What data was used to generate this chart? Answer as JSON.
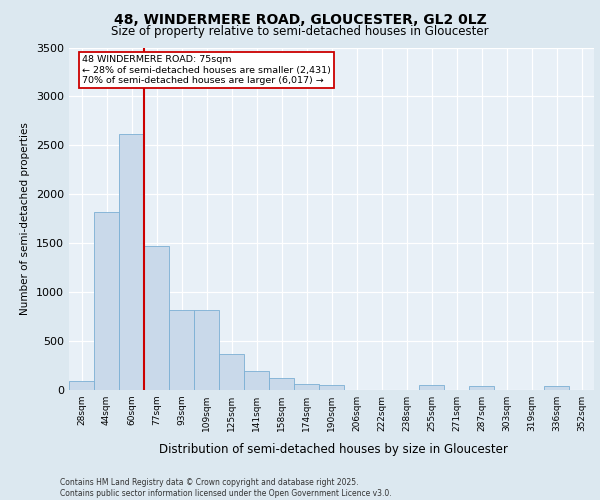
{
  "title_line1": "48, WINDERMERE ROAD, GLOUCESTER, GL2 0LZ",
  "title_line2": "Size of property relative to semi-detached houses in Gloucester",
  "xlabel": "Distribution of semi-detached houses by size in Gloucester",
  "ylabel": "Number of semi-detached properties",
  "footnote": "Contains HM Land Registry data © Crown copyright and database right 2025.\nContains public sector information licensed under the Open Government Licence v3.0.",
  "bar_labels": [
    "28sqm",
    "44sqm",
    "60sqm",
    "77sqm",
    "93sqm",
    "109sqm",
    "125sqm",
    "141sqm",
    "158sqm",
    "174sqm",
    "190sqm",
    "206sqm",
    "222sqm",
    "238sqm",
    "255sqm",
    "271sqm",
    "287sqm",
    "303sqm",
    "319sqm",
    "336sqm",
    "352sqm"
  ],
  "bar_values": [
    95,
    1820,
    2620,
    1470,
    820,
    820,
    370,
    195,
    120,
    65,
    55,
    0,
    0,
    0,
    55,
    0,
    45,
    0,
    0,
    40,
    0
  ],
  "bar_color": "#c9d9ea",
  "bar_edge_color": "#7bafd4",
  "red_line_index": 2.5,
  "annotation_text": "48 WINDERMERE ROAD: 75sqm\n← 28% of semi-detached houses are smaller (2,431)\n70% of semi-detached houses are larger (6,017) →",
  "ylim_max": 3500,
  "yticks": [
    0,
    500,
    1000,
    1500,
    2000,
    2500,
    3000,
    3500
  ],
  "fig_bg_color": "#dce8f0",
  "plot_bg_color": "#e8f0f7",
  "grid_color": "#ffffff",
  "red_line_color": "#cc0000",
  "ann_box_fc": "#ffffff",
  "ann_box_ec": "#cc0000"
}
